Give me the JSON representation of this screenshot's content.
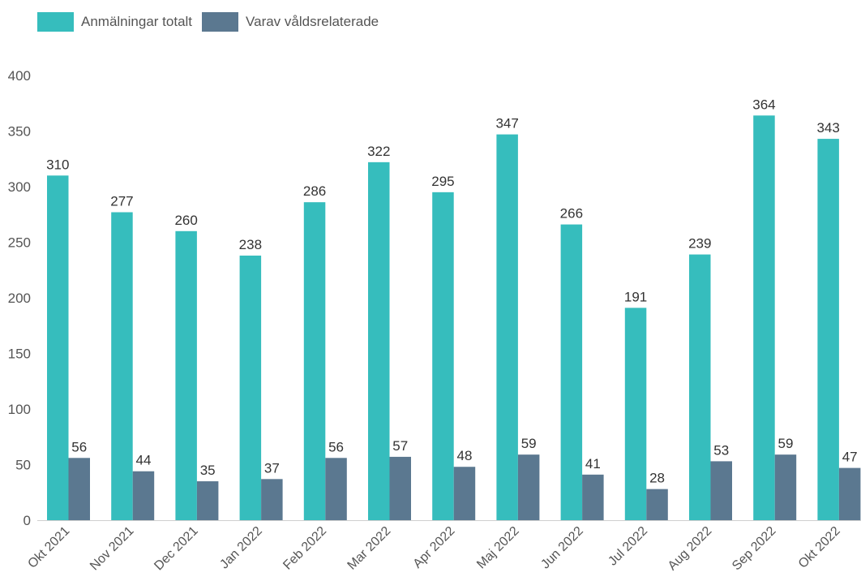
{
  "chart_data": {
    "type": "bar",
    "title": "",
    "xlabel": "",
    "ylabel": "",
    "ylim": [
      0,
      400
    ],
    "yticks": [
      0,
      50,
      100,
      150,
      200,
      250,
      300,
      350,
      400
    ],
    "grid": false,
    "legend_position": "top-left",
    "categories": [
      "Okt 2021",
      "Nov 2021",
      "Dec 2021",
      "Jan 2022",
      "Feb 2022",
      "Mar 2022",
      "Apr 2022",
      "Maj 2022",
      "Jun 2022",
      "Jul 2022",
      "Aug 2022",
      "Sep 2022",
      "Okt 2022"
    ],
    "series": [
      {
        "name": "Anmälningar totalt",
        "color": "#36bdbd",
        "values": [
          310,
          277,
          260,
          238,
          286,
          322,
          295,
          347,
          266,
          191,
          239,
          364,
          343
        ]
      },
      {
        "name": "Varav våldsrelaterade",
        "color": "#5b7890",
        "values": [
          56,
          44,
          35,
          37,
          56,
          57,
          48,
          59,
          41,
          28,
          53,
          59,
          47
        ]
      }
    ]
  }
}
